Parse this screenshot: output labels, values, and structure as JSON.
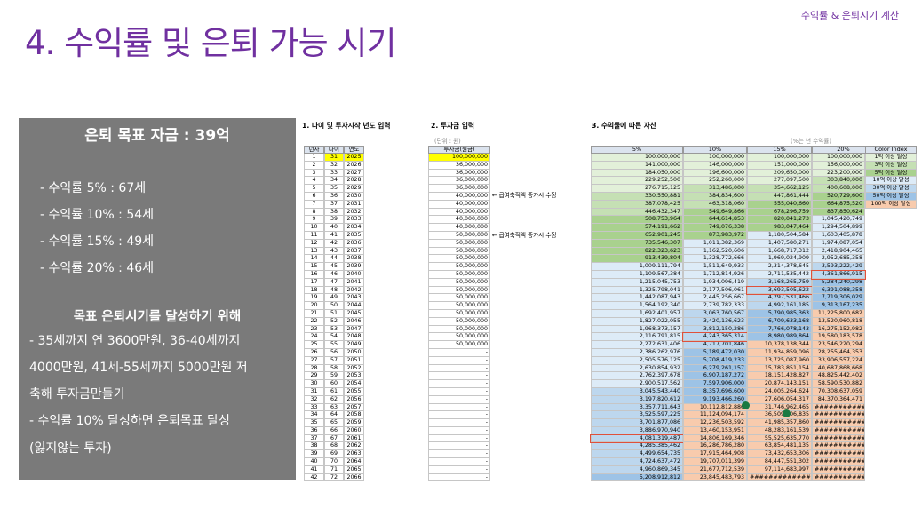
{
  "title": "4. 수익률 및 은퇴 가능 시기",
  "corner": "수익률 & 은퇴시기 계산",
  "panel": {
    "goal": "은퇴 목표 자금 : 39억",
    "rates": [
      "- 수익률   5% : 67세",
      "- 수익률 10% : 54세",
      "- 수익률 15% : 49세",
      "- 수익률 20% : 46세"
    ],
    "subtitle": "목표 은퇴시기를 달성하기 위해",
    "body": [
      "- 35세까지 연 3600만원, 36-40세까지",
      "4000만원, 41세-55세까지 5000만원 저",
      "축해 투자금만들기",
      "- 수익률 10% 달성하면 은퇴목표 달성",
      "(잃지않는 투자)"
    ]
  },
  "sheet": {
    "sec1": "1. 나이 및 투자시작 년도 입력",
    "sec2": "2. 투자금 입력",
    "sec3": "3. 수익률에 따른 자산",
    "unit": "(단위 : 원)",
    "unit_rate": "(%는 년 수익률)",
    "ann1": "← 급여축적액 증가시 수정",
    "ann2": "← 급여축적액 증가시 수정",
    "h_year": "년차",
    "h_age": "나이",
    "h_yr": "연도",
    "h_invest": "투자금(원금)",
    "h5": "5%",
    "h10": "10%",
    "h15": "15%",
    "h20": "20%",
    "h_color": "Color Index",
    "legend": [
      "1억 이상 달성",
      "3억 이상 달성",
      "5억 이상 달성",
      "10억 이상 달성",
      "30억 이상 달성",
      "50억 이상 달성",
      "100억 이상 달성"
    ],
    "legend_colors": [
      "#e2f0d9",
      "#c5e0b4",
      "#a9d18e",
      "#ddebf7",
      "#bdd7ee",
      "#9dc3e6",
      "#f8cbad"
    ],
    "years": [
      "1",
      "2",
      "3",
      "4",
      "5",
      "6",
      "7",
      "8",
      "9",
      "10",
      "11",
      "12",
      "13",
      "14",
      "15",
      "16",
      "17",
      "18",
      "19",
      "20",
      "21",
      "22",
      "23",
      "24",
      "25",
      "26",
      "27",
      "28",
      "29",
      "30",
      "31",
      "32",
      "33",
      "34",
      "35",
      "36",
      "37",
      "38",
      "39",
      "40",
      "41",
      "42"
    ],
    "ages": [
      "31",
      "32",
      "33",
      "34",
      "35",
      "36",
      "37",
      "38",
      "39",
      "40",
      "41",
      "42",
      "43",
      "44",
      "45",
      "46",
      "47",
      "48",
      "49",
      "50",
      "51",
      "52",
      "53",
      "54",
      "55",
      "56",
      "57",
      "58",
      "59",
      "60",
      "61",
      "62",
      "63",
      "64",
      "65",
      "66",
      "67",
      "68",
      "69",
      "70",
      "71",
      "72"
    ],
    "yrs": [
      "2025",
      "2026",
      "2027",
      "2028",
      "2029",
      "2030",
      "2031",
      "2032",
      "2033",
      "2034",
      "2035",
      "2036",
      "2037",
      "2038",
      "2039",
      "2040",
      "2041",
      "2042",
      "2043",
      "2044",
      "2045",
      "2046",
      "2047",
      "2048",
      "2049",
      "2050",
      "2051",
      "2052",
      "2053",
      "2054",
      "2055",
      "2056",
      "2057",
      "2058",
      "2059",
      "2060",
      "2061",
      "2062",
      "2063",
      "2064",
      "2065",
      "2066"
    ],
    "invest": [
      "100,000,000",
      "36,000,000",
      "36,000,000",
      "36,000,000",
      "36,000,000",
      "40,000,000",
      "40,000,000",
      "40,000,000",
      "40,000,000",
      "40,000,000",
      "50,000,000",
      "50,000,000",
      "50,000,000",
      "50,000,000",
      "50,000,000",
      "50,000,000",
      "50,000,000",
      "50,000,000",
      "50,000,000",
      "50,000,000",
      "50,000,000",
      "50,000,000",
      "50,000,000",
      "50,000,000",
      "50,000,000",
      "-",
      "-",
      "-",
      "-",
      "-",
      "-",
      "-",
      "-",
      "-",
      "-",
      "-",
      "-",
      "-",
      "-",
      "-",
      "-",
      "-"
    ],
    "r5": [
      "100,000,000",
      "141,000,000",
      "184,050,000",
      "229,252,500",
      "276,715,125",
      "330,550,881",
      "387,078,425",
      "446,432,347",
      "508,753,964",
      "574,191,662",
      "652,901,245",
      "735,546,307",
      "822,323,623",
      "913,439,804",
      "1,009,111,794",
      "1,109,567,384",
      "1,215,045,753",
      "1,325,798,041",
      "1,442,087,943",
      "1,564,192,340",
      "1,692,401,957",
      "1,827,022,055",
      "1,968,373,157",
      "2,116,791,815",
      "2,272,631,406",
      "2,386,262,976",
      "2,505,576,125",
      "2,630,854,932",
      "2,762,397,678",
      "2,900,517,562",
      "3,045,543,440",
      "3,197,820,612",
      "3,357,711,643",
      "3,525,597,225",
      "3,701,877,086",
      "3,886,970,940",
      "4,081,319,487",
      "4,285,385,462",
      "4,499,654,735",
      "4,724,637,472",
      "4,960,869,345",
      "5,208,912,812"
    ],
    "r10": [
      "100,000,000",
      "146,000,000",
      "196,600,000",
      "252,260,000",
      "313,486,000",
      "384,834,600",
      "463,318,060",
      "549,649,866",
      "644,614,853",
      "749,076,338",
      "873,983,972",
      "1,011,382,369",
      "1,162,520,606",
      "1,328,772,666",
      "1,511,649,933",
      "1,712,814,926",
      "1,934,096,419",
      "2,177,506,061",
      "2,445,256,667",
      "2,739,782,333",
      "3,063,760,567",
      "3,420,136,623",
      "3,812,150,286",
      "4,243,365,314",
      "4,717,701,846",
      "5,189,472,030",
      "5,708,419,233",
      "6,279,261,157",
      "6,907,187,272",
      "7,597,906,000",
      "8,357,696,600",
      "9,193,466,260",
      "10,112,812,886",
      "11,124,094,174",
      "12,236,503,592",
      "13,460,153,951",
      "14,806,169,346",
      "16,286,786,280",
      "17,915,464,908",
      "19,707,011,399",
      "21,677,712,539",
      "23,845,483,793"
    ],
    "r15": [
      "100,000,000",
      "151,000,000",
      "209,650,000",
      "277,097,500",
      "354,662,125",
      "447,861,444",
      "555,040,660",
      "678,296,759",
      "820,041,273",
      "983,047,464",
      "1,180,504,584",
      "1,407,580,271",
      "1,668,717,312",
      "1,969,024,909",
      "2,314,378,645",
      "2,711,535,442",
      "3,168,265,759",
      "3,693,505,622",
      "4,297,531,466",
      "4,992,161,185",
      "5,790,985,363",
      "6,709,633,168",
      "7,766,078,143",
      "8,980,989,864",
      "10,378,138,344",
      "11,934,859,096",
      "13,725,087,960",
      "15,783,851,154",
      "18,151,428,827",
      "20,874,143,151",
      "24,005,264,624",
      "27,606,054,317",
      "31,746,962,465",
      "36,509,006,835",
      "41,985,357,860",
      "48,283,161,539",
      "55,525,635,770",
      "63,854,481,135",
      "73,432,653,306",
      "84,447,551,302",
      "97,114,683,997",
      "###############"
    ],
    "r20": [
      "100,000,000",
      "156,000,000",
      "223,200,000",
      "303,840,000",
      "400,608,000",
      "520,729,600",
      "664,875,520",
      "837,850,624",
      "1,045,420,749",
      "1,294,504,899",
      "1,603,405,878",
      "1,974,087,054",
      "2,418,904,465",
      "2,952,685,358",
      "3,593,222,429",
      "4,361,866,915",
      "5,284,240,298",
      "6,391,088,358",
      "7,719,306,029",
      "9,313,167,235",
      "11,225,800,682",
      "13,520,960,818",
      "16,275,152,982",
      "19,580,183,578",
      "23,546,220,294",
      "28,255,464,353",
      "33,906,557,224",
      "40,687,868,668",
      "48,825,442,402",
      "58,590,530,882",
      "70,308,637,059",
      "84,370,364,471",
      "###############",
      "###############",
      "###############",
      "###############",
      "###############",
      "###############",
      "###############",
      "###############",
      "###############",
      "###############"
    ]
  }
}
